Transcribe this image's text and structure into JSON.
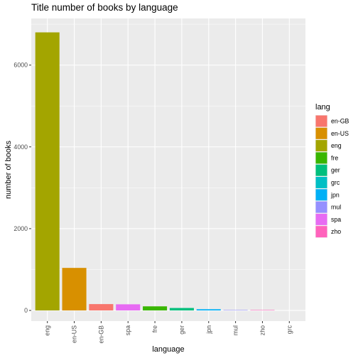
{
  "chart_data": {
    "type": "bar",
    "title": "Title number of books by language",
    "xlabel": "language",
    "ylabel": "number of books",
    "categories": [
      "eng",
      "en-US",
      "en-GB",
      "spa",
      "fre",
      "ger",
      "jpn",
      "mul",
      "zho",
      "grc"
    ],
    "values": [
      6800,
      1040,
      155,
      150,
      100,
      60,
      30,
      10,
      10,
      0
    ],
    "yticks": [
      0,
      2000,
      4000,
      6000
    ],
    "ylim": [
      -260,
      7140
    ],
    "grid": true,
    "legend": {
      "title": "lang",
      "placement": "right",
      "items": [
        "en-GB",
        "en-US",
        "eng",
        "fre",
        "ger",
        "grc",
        "jpn",
        "mul",
        "spa",
        "zho"
      ]
    },
    "colors": {
      "en-GB": "#F8766D",
      "en-US": "#D89000",
      "eng": "#A3A500",
      "fre": "#39B600",
      "ger": "#00BF7D",
      "grc": "#00BFC4",
      "jpn": "#00B0F6",
      "mul": "#9590FF",
      "spa": "#E76BF3",
      "zho": "#FF62BC"
    },
    "panel_background": "#EBEBEB",
    "grid_color": "#FFFFFF"
  }
}
